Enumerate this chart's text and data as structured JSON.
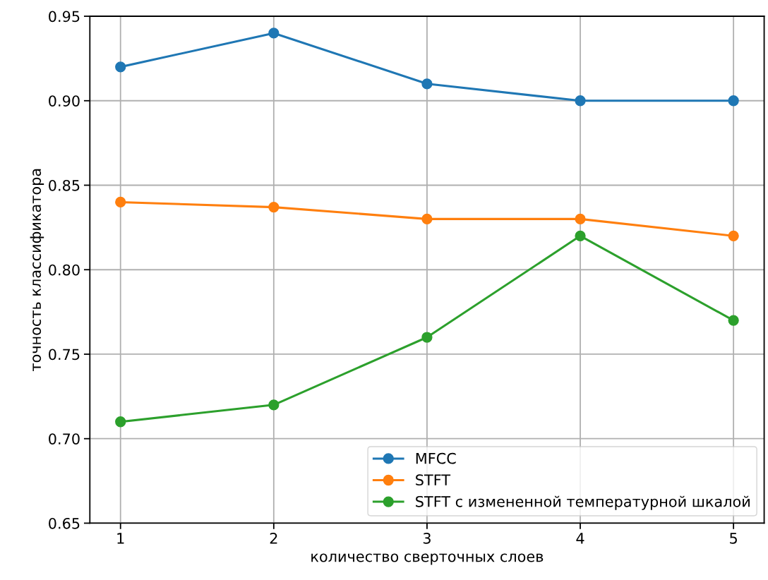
{
  "chart_data": {
    "type": "line",
    "xlabel": "количество сверточных слоев",
    "ylabel": "точность классификатора",
    "x": [
      1,
      2,
      3,
      4,
      5
    ],
    "series": [
      {
        "name": "MFCC",
        "color": "#1f77b4",
        "values": [
          0.92,
          0.94,
          0.91,
          0.9,
          0.9
        ]
      },
      {
        "name": "STFT",
        "color": "#ff7f0e",
        "values": [
          0.84,
          0.837,
          0.83,
          0.83,
          0.82
        ]
      },
      {
        "name": "STFT с измененной температурной шкалой",
        "color": "#2ca02c",
        "values": [
          0.71,
          0.72,
          0.76,
          0.82,
          0.77
        ]
      }
    ],
    "xlim": [
      0.8,
      5.2
    ],
    "xticks": [
      1,
      2,
      3,
      4,
      5
    ],
    "ylim": [
      0.65,
      0.95
    ],
    "yticks": [
      {
        "value": 0.65,
        "label": "0.65"
      },
      {
        "value": 0.7,
        "label": "0.70"
      },
      {
        "value": 0.75,
        "label": "0.75"
      },
      {
        "value": 0.8,
        "label": "0.80"
      },
      {
        "value": 0.85,
        "label": "0.85"
      },
      {
        "value": 0.9,
        "label": "0.90"
      },
      {
        "value": 0.95,
        "label": "0.95"
      }
    ],
    "grid": true,
    "legend": "bottom right",
    "marker": "circle",
    "line_style": "solid"
  }
}
